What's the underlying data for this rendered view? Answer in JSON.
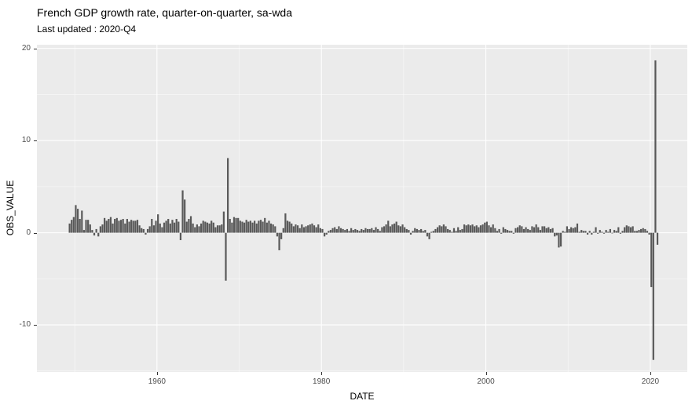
{
  "chart": {
    "title": "French GDP growth rate, quarter-on-quarter, sa-wda",
    "subtitle": "Last updated : 2020-Q4",
    "xlabel": "DATE",
    "ylabel": "OBS_VALUE"
  },
  "chart_data": {
    "type": "bar",
    "title": "French GDP growth rate, quarter-on-quarter, sa-wda",
    "subtitle": "Last updated : 2020-Q4",
    "xlabel": "DATE",
    "ylabel": "OBS_VALUE",
    "frequency": "quarterly",
    "start_period": "1949-Q2",
    "end_period": "2020-Q4",
    "x_ticks": [
      1960,
      1980,
      2000,
      2020
    ],
    "x_minor_ticks": [
      1950,
      1970,
      1990,
      2010
    ],
    "y_ticks": [
      20,
      10,
      0,
      -10
    ],
    "y_minor_ticks": [
      15,
      5,
      -5,
      -15
    ],
    "xlim": [
      1945.4,
      2024.5
    ],
    "ylim": [
      -15.1,
      20.4
    ],
    "grid": true,
    "legend_position": "none",
    "bar_color": "#595959",
    "panel_bg": "#EBEBEB",
    "grid_color": "#FFFFFF",
    "tick_label_color": "#4D4D4D",
    "values": [
      1.0,
      1.4,
      1.7,
      3.0,
      2.6,
      1.5,
      2.4,
      0.3,
      1.4,
      1.4,
      0.9,
      0.3,
      -0.3,
      0.4,
      -0.4,
      0.7,
      0.9,
      1.6,
      1.3,
      1.5,
      1.7,
      1.0,
      1.5,
      1.6,
      1.3,
      1.4,
      1.5,
      1.0,
      1.5,
      1.2,
      1.4,
      1.3,
      1.3,
      1.4,
      0.8,
      0.5,
      0.4,
      -0.2,
      0.4,
      0.7,
      1.5,
      0.8,
      1.3,
      2.0,
      1.0,
      0.6,
      1.1,
      1.3,
      1.5,
      1.0,
      1.4,
      1.1,
      1.5,
      1.2,
      -0.8,
      4.6,
      3.6,
      1.2,
      1.5,
      1.8,
      1.0,
      0.6,
      0.9,
      0.7,
      1.0,
      1.3,
      1.2,
      1.1,
      1.0,
      1.3,
      1.1,
      0.6,
      0.8,
      0.8,
      0.9,
      2.3,
      -5.2,
      8.1,
      1.5,
      1.1,
      1.7,
      1.6,
      1.6,
      1.3,
      1.2,
      1.1,
      1.4,
      1.2,
      1.3,
      1.1,
      1.3,
      1.0,
      1.3,
      1.4,
      1.2,
      1.6,
      1.1,
      1.3,
      1.0,
      0.9,
      0.7,
      -0.4,
      -1.9,
      -0.7,
      0.5,
      2.1,
      1.3,
      1.2,
      1.0,
      0.7,
      0.9,
      0.8,
      0.5,
      0.9,
      0.6,
      0.7,
      0.8,
      0.9,
      1.0,
      0.8,
      0.6,
      0.9,
      0.5,
      0.4,
      -0.4,
      -0.2,
      0.2,
      0.3,
      0.5,
      0.6,
      0.4,
      0.7,
      0.5,
      0.4,
      0.3,
      0.4,
      0.2,
      0.5,
      0.3,
      0.4,
      0.3,
      0.2,
      0.4,
      0.3,
      0.5,
      0.4,
      0.4,
      0.5,
      0.3,
      0.6,
      0.4,
      0.2,
      0.6,
      0.7,
      0.9,
      1.3,
      0.7,
      0.9,
      1.0,
      1.2,
      0.8,
      0.7,
      0.9,
      0.6,
      0.4,
      0.3,
      -0.2,
      0.2,
      0.5,
      0.4,
      0.3,
      0.4,
      0.2,
      0.3,
      -0.4,
      -0.7,
      0.1,
      0.2,
      0.4,
      0.6,
      0.8,
      0.7,
      0.9,
      0.7,
      0.4,
      0.3,
      0.1,
      0.5,
      0.2,
      0.6,
      0.3,
      0.4,
      0.9,
      0.8,
      0.9,
      0.8,
      0.9,
      0.7,
      0.8,
      0.6,
      0.8,
      0.9,
      1.1,
      1.2,
      0.8,
      0.6,
      0.9,
      0.5,
      0.2,
      0.4,
      -0.1,
      0.6,
      0.4,
      0.3,
      0.2,
      0.2,
      -0.1,
      0.5,
      0.6,
      0.8,
      0.7,
      0.4,
      0.6,
      0.4,
      0.3,
      0.7,
      0.6,
      0.9,
      0.6,
      0.3,
      0.7,
      0.7,
      0.5,
      0.6,
      0.4,
      0.5,
      -0.4,
      -0.3,
      -1.6,
      -1.5,
      0.2,
      0.1,
      0.7,
      0.4,
      0.6,
      0.5,
      0.6,
      1.0,
      0.1,
      0.3,
      0.2,
      0.2,
      -0.2,
      0.2,
      -0.2,
      0.1,
      0.6,
      -0.1,
      0.3,
      0.1,
      -0.1,
      0.3,
      0.1,
      0.4,
      0.0,
      0.3,
      0.2,
      0.6,
      -0.1,
      0.2,
      0.6,
      0.8,
      0.7,
      0.6,
      0.7,
      0.2,
      0.2,
      0.3,
      0.4,
      0.5,
      0.4,
      0.2,
      -0.2,
      -5.9,
      -13.8,
      18.7,
      -1.3
    ]
  }
}
